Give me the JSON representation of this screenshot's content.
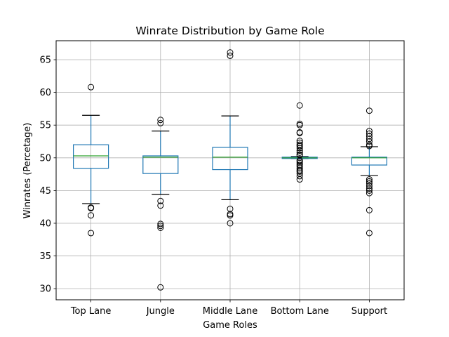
{
  "chart_data": {
    "type": "box",
    "title": "Winrate Distribution by Game Role",
    "xlabel": "Game Roles",
    "ylabel": "Winrates (Percetage)",
    "ylim": [
      28.3,
      67.9
    ],
    "yticks": [
      30,
      35,
      40,
      45,
      50,
      55,
      60,
      65
    ],
    "grid": true,
    "colors": {
      "box": "#1f77b4",
      "median": "#2ca02c",
      "grid": "#b0b0b0",
      "outlier": "#000000"
    },
    "categories": [
      "Top Lane",
      "Jungle",
      "Middle Lane",
      "Bottom Lane",
      "Support"
    ],
    "boxes": [
      {
        "name": "Top Lane",
        "whislo": 43.0,
        "q1": 48.4,
        "med": 50.3,
        "q3": 52.0,
        "whishi": 56.5,
        "fliers": [
          60.8,
          42.4,
          42.3,
          41.2,
          38.5
        ]
      },
      {
        "name": "Jungle",
        "whislo": 44.4,
        "q1": 47.6,
        "med": 50.1,
        "q3": 50.3,
        "whishi": 54.1,
        "fliers": [
          55.8,
          55.3,
          43.4,
          42.7,
          39.9,
          39.6,
          39.3,
          30.2
        ]
      },
      {
        "name": "Middle Lane",
        "whislo": 43.6,
        "q1": 48.2,
        "med": 50.1,
        "q3": 51.6,
        "whishi": 56.4,
        "fliers": [
          66.1,
          65.6,
          42.2,
          41.4,
          41.2,
          40.0
        ]
      },
      {
        "name": "Bottom Lane",
        "whislo": 49.9,
        "q1": 49.9,
        "med": 50.0,
        "q3": 50.1,
        "whishi": 50.2,
        "fliers": [
          58.0,
          55.2,
          55.0,
          53.9,
          53.8,
          52.6,
          52.3,
          52.0,
          51.8,
          51.5,
          51.1,
          50.8,
          50.5,
          50.4,
          49.6,
          49.4,
          49.2,
          48.9,
          48.7,
          48.4,
          48.1,
          47.9,
          47.6,
          47.2,
          46.7
        ]
      },
      {
        "name": "Support",
        "whislo": 47.3,
        "q1": 48.9,
        "med": 50.0,
        "q3": 50.1,
        "whishi": 51.7,
        "fliers": [
          57.2,
          54.1,
          53.7,
          53.3,
          52.9,
          52.5,
          52.0,
          51.8,
          46.7,
          46.4,
          46.1,
          45.7,
          45.3,
          45.0,
          44.6,
          42.0,
          38.5
        ]
      }
    ]
  }
}
